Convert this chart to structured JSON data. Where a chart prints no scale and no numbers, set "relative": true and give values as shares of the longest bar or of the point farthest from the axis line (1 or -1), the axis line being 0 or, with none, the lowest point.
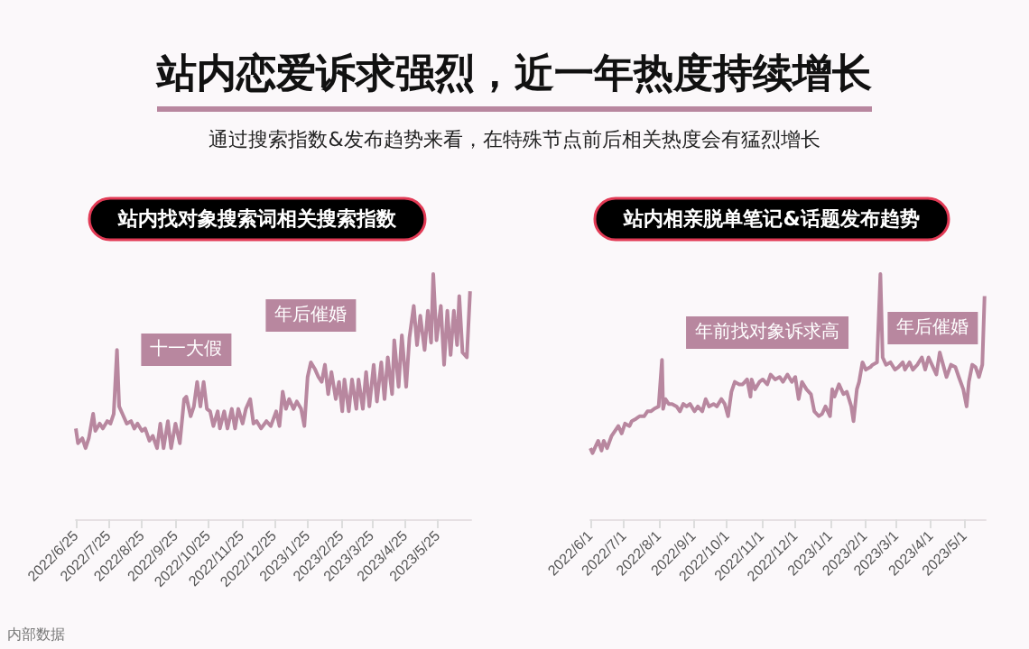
{
  "chart_data": [
    {
      "type": "other",
      "title": "站内恋爱诉求强烈，近一年热度持续增长",
      "subtitle": "通过搜索指数&发布趋势来看，在特殊节点前后相关热度会有猛烈增长"
    },
    {
      "type": "line",
      "title": "站内找对象搜索词相关搜索指数",
      "relative": true,
      "marker": "none",
      "line_style": "solid",
      "grid": false,
      "xlim": [
        "2022-06-25",
        "2023-06-25"
      ],
      "xticks": [
        {
          "value": "2022-06-25",
          "label": "2022/6/25"
        },
        {
          "value": "2022-07-25",
          "label": "2022/7/25"
        },
        {
          "value": "2022-08-25",
          "label": "2022/8/25"
        },
        {
          "value": "2022-09-25",
          "label": "2022/9/25"
        },
        {
          "value": "2022-10-25",
          "label": "2022/10/25"
        },
        {
          "value": "2022-11-25",
          "label": "2022/11/25"
        },
        {
          "value": "2022-12-25",
          "label": "2022/12/25"
        },
        {
          "value": "2023-01-25",
          "label": "2023/1/25"
        },
        {
          "value": "2023-02-25",
          "label": "2023/2/25"
        },
        {
          "value": "2023-03-25",
          "label": "2023/3/25"
        },
        {
          "value": "2023-04-25",
          "label": "2023/4/25"
        },
        {
          "value": "2023-05-25",
          "label": "2023/5/25"
        }
      ],
      "x": [
        "2022-06-25",
        "2022-06-27",
        "2022-07-01",
        "2022-07-04",
        "2022-07-07",
        "2022-07-11",
        "2022-07-13",
        "2022-07-17",
        "2022-07-20",
        "2022-07-24",
        "2022-07-27",
        "2022-07-30",
        "2022-08-02",
        "2022-08-04",
        "2022-08-07",
        "2022-08-11",
        "2022-08-15",
        "2022-08-18",
        "2022-08-21",
        "2022-08-25",
        "2022-08-28",
        "2022-09-01",
        "2022-09-04",
        "2022-09-08",
        "2022-09-11",
        "2022-09-14",
        "2022-09-18",
        "2022-09-21",
        "2022-09-25",
        "2022-09-29",
        "2022-10-03",
        "2022-10-05",
        "2022-10-09",
        "2022-10-12",
        "2022-10-15",
        "2022-10-18",
        "2022-10-21",
        "2022-10-24",
        "2022-10-27",
        "2022-10-30",
        "2022-11-03",
        "2022-11-05",
        "2022-11-09",
        "2022-11-12",
        "2022-11-16",
        "2022-11-19",
        "2022-11-22",
        "2022-11-26",
        "2022-11-29",
        "2022-12-03",
        "2022-12-06",
        "2022-12-09",
        "2022-12-13",
        "2022-12-18",
        "2022-12-22",
        "2022-12-27",
        "2022-12-30",
        "2023-01-02",
        "2023-01-05",
        "2023-01-08",
        "2023-01-12",
        "2023-01-15",
        "2023-01-19",
        "2023-01-22",
        "2023-01-25",
        "2023-01-28",
        "2023-02-01",
        "2023-02-04",
        "2023-02-07",
        "2023-02-10",
        "2023-02-13",
        "2023-02-16",
        "2023-02-20",
        "2023-02-23",
        "2023-02-26",
        "2023-02-28",
        "2023-03-04",
        "2023-03-07",
        "2023-03-11",
        "2023-03-13",
        "2023-03-17",
        "2023-03-20",
        "2023-03-23",
        "2023-03-27",
        "2023-03-30",
        "2023-04-03",
        "2023-04-06",
        "2023-04-09",
        "2023-04-13",
        "2023-04-15",
        "2023-04-19",
        "2023-04-22",
        "2023-04-26",
        "2023-04-29",
        "2023-05-03",
        "2023-05-06",
        "2023-05-09",
        "2023-05-13",
        "2023-05-16",
        "2023-05-19",
        "2023-05-21",
        "2023-05-24",
        "2023-05-28",
        "2023-05-31",
        "2023-06-03",
        "2023-06-06",
        "2023-06-09",
        "2023-06-12",
        "2023-06-14",
        "2023-06-17",
        "2023-06-21",
        "2023-06-24"
      ],
      "series": [
        {
          "color": "#b8879f",
          "values": [
            0.37,
            0.31,
            0.33,
            0.29,
            0.33,
            0.43,
            0.36,
            0.39,
            0.37,
            0.4,
            0.39,
            0.43,
            0.69,
            0.46,
            0.43,
            0.39,
            0.4,
            0.37,
            0.39,
            0.36,
            0.37,
            0.32,
            0.34,
            0.29,
            0.39,
            0.29,
            0.4,
            0.29,
            0.39,
            0.31,
            0.49,
            0.5,
            0.42,
            0.46,
            0.56,
            0.46,
            0.56,
            0.45,
            0.44,
            0.38,
            0.44,
            0.37,
            0.44,
            0.37,
            0.45,
            0.37,
            0.45,
            0.39,
            0.45,
            0.49,
            0.39,
            0.4,
            0.37,
            0.4,
            0.38,
            0.44,
            0.38,
            0.52,
            0.45,
            0.49,
            0.45,
            0.48,
            0.45,
            0.38,
            0.58,
            0.64,
            0.61,
            0.58,
            0.56,
            0.63,
            0.51,
            0.6,
            0.49,
            0.56,
            0.44,
            0.57,
            0.44,
            0.57,
            0.45,
            0.57,
            0.45,
            0.6,
            0.46,
            0.63,
            0.48,
            0.64,
            0.49,
            0.66,
            0.51,
            0.73,
            0.54,
            0.75,
            0.54,
            0.74,
            0.87,
            0.71,
            0.83,
            0.69,
            0.85,
            0.72,
            1,
            0.73,
            0.87,
            0.63,
            0.85,
            0.67,
            0.85,
            0.71,
            0.91,
            0.68,
            0.66,
            0.93
          ]
        }
      ],
      "annotations": [
        {
          "text": "十一大假",
          "x": "2022-10-05",
          "y": 0.5
        },
        {
          "text": "年后催婚",
          "x": "2023-01-28",
          "y": 0.64
        },
        "内部数据"
      ]
    },
    {
      "type": "line",
      "title": "站内相亲脱单笔记&话题发布趋势",
      "relative": true,
      "marker": "none",
      "line_style": "solid",
      "grid": false,
      "xlim": [
        "2022-06-01",
        "2023-05-20"
      ],
      "xticks": [
        {
          "value": "2022-06-01",
          "label": "2022/6/1"
        },
        {
          "value": "2022-07-01",
          "label": "2022/7/1"
        },
        {
          "value": "2022-08-01",
          "label": "2022/8/1"
        },
        {
          "value": "2022-09-01",
          "label": "2022/9/1"
        },
        {
          "value": "2022-10-01",
          "label": "2022/10/1"
        },
        {
          "value": "2022-11-01",
          "label": "2022/11/1"
        },
        {
          "value": "2022-12-01",
          "label": "2022/12/1"
        },
        {
          "value": "2023-01-01",
          "label": "2023/1/1"
        },
        {
          "value": "2023-02-01",
          "label": "2023/2/1"
        },
        {
          "value": "2023-03-01",
          "label": "2023/3/1"
        },
        {
          "value": "2023-04-01",
          "label": "2023/4/1"
        },
        {
          "value": "2023-05-01",
          "label": "2023/5/1"
        }
      ],
      "x": [
        "2022-06-01",
        "2022-06-03",
        "2022-06-06",
        "2022-06-08",
        "2022-06-11",
        "2022-06-13",
        "2022-06-16",
        "2022-06-20",
        "2022-06-23",
        "2022-06-26",
        "2022-06-29",
        "2022-07-02",
        "2022-07-06",
        "2022-07-08",
        "2022-07-12",
        "2022-07-15",
        "2022-07-19",
        "2022-07-22",
        "2022-07-25",
        "2022-07-28",
        "2022-08-01",
        "2022-08-04",
        "2022-08-05",
        "2022-08-07",
        "2022-08-10",
        "2022-08-13",
        "2022-08-17",
        "2022-08-20",
        "2022-08-23",
        "2022-08-26",
        "2022-08-29",
        "2022-09-02",
        "2022-09-05",
        "2022-09-09",
        "2022-09-12",
        "2022-09-15",
        "2022-09-19",
        "2022-09-22",
        "2022-09-26",
        "2022-09-29",
        "2022-10-02",
        "2022-10-05",
        "2022-10-08",
        "2022-10-12",
        "2022-10-15",
        "2022-10-19",
        "2022-10-22",
        "2022-10-23",
        "2022-10-26",
        "2022-10-30",
        "2022-11-02",
        "2022-11-06",
        "2022-11-09",
        "2022-11-13",
        "2022-11-17",
        "2022-11-20",
        "2022-11-24",
        "2022-11-28",
        "2022-12-01",
        "2022-12-04",
        "2022-12-07",
        "2022-12-11",
        "2022-12-15",
        "2022-12-18",
        "2022-12-22",
        "2022-12-25",
        "2022-12-28",
        "2023-01-01",
        "2023-01-03",
        "2023-01-05",
        "2023-01-09",
        "2023-01-13",
        "2023-01-16",
        "2023-01-20",
        "2023-01-22",
        "2023-01-25",
        "2023-01-27",
        "2023-01-30",
        "2023-02-02",
        "2023-02-06",
        "2023-02-08",
        "2023-02-12",
        "2023-02-13",
        "2023-02-15",
        "2023-02-17",
        "2023-02-20",
        "2023-02-24",
        "2023-02-28",
        "2023-03-03",
        "2023-03-07",
        "2023-03-09",
        "2023-03-13",
        "2023-03-16",
        "2023-03-20",
        "2023-03-24",
        "2023-03-27",
        "2023-03-30",
        "2023-04-02",
        "2023-04-06",
        "2023-04-09",
        "2023-04-12",
        "2023-04-15",
        "2023-04-19",
        "2023-04-23",
        "2023-04-26",
        "2023-04-30",
        "2023-05-03",
        "2023-05-05",
        "2023-05-08",
        "2023-05-11",
        "2023-05-14",
        "2023-05-17",
        "2023-05-19"
      ],
      "series": [
        {
          "color": "#b8879f",
          "values": [
            0.29,
            0.27,
            0.3,
            0.32,
            0.28,
            0.32,
            0.29,
            0.34,
            0.36,
            0.38,
            0.35,
            0.39,
            0.38,
            0.4,
            0.41,
            0.42,
            0.42,
            0.44,
            0.44,
            0.45,
            0.46,
            0.65,
            0.45,
            0.49,
            0.47,
            0.47,
            0.46,
            0.44,
            0.47,
            0.46,
            0.47,
            0.44,
            0.46,
            0.44,
            0.49,
            0.46,
            0.47,
            0.46,
            0.49,
            0.47,
            0.42,
            0.52,
            0.56,
            0.55,
            0.55,
            0.57,
            0.5,
            0.57,
            0.53,
            0.56,
            0.57,
            0.55,
            0.59,
            0.57,
            0.58,
            0.56,
            0.59,
            0.56,
            0.58,
            0.49,
            0.56,
            0.53,
            0.51,
            0.44,
            0.42,
            0.43,
            0.46,
            0.42,
            0.53,
            0.5,
            0.55,
            0.51,
            0.52,
            0.46,
            0.4,
            0.53,
            0.56,
            0.64,
            0.61,
            0.62,
            0.63,
            0.64,
            0.76,
            1,
            0.66,
            0.63,
            0.64,
            0.61,
            0.62,
            0.64,
            0.61,
            0.64,
            0.61,
            0.63,
            0.66,
            0.61,
            0.66,
            0.63,
            0.59,
            0.68,
            0.63,
            0.58,
            0.63,
            0.62,
            0.58,
            0.53,
            0.46,
            0.56,
            0.63,
            0.62,
            0.58,
            0.63,
            0.91
          ]
        }
      ],
      "annotations": [
        {
          "text": "年前找对象诉求高",
          "x": "2022-11-06",
          "y": 0.57
        },
        {
          "text": "年后催婚",
          "x": "2023-02-15",
          "y": 1
        }
      ]
    }
  ]
}
